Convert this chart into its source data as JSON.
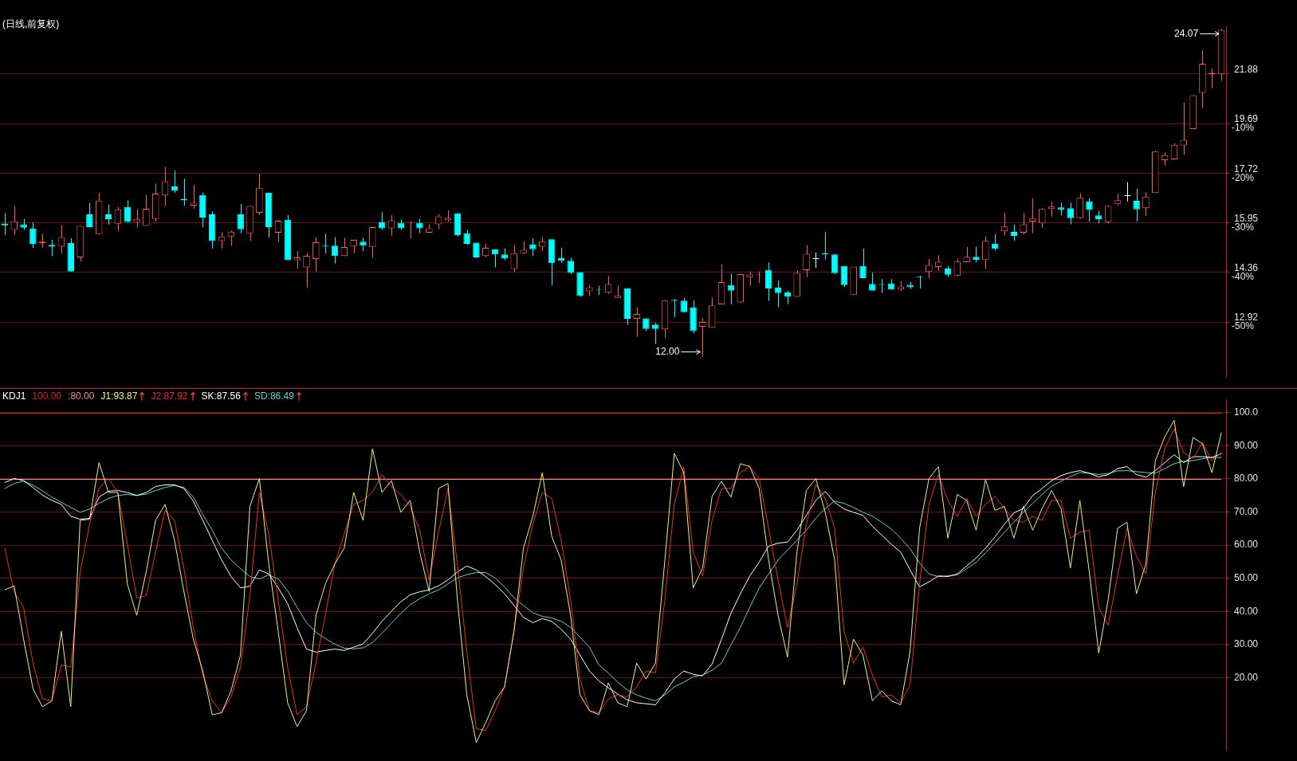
{
  "chart_data": [
    {
      "type": "candlestick",
      "title": "(日线,前复权)",
      "log": true,
      "grid": "y",
      "tick_labels": "y",
      "categories": [
        null,
        null,
        null,
        null,
        null,
        null,
        null,
        null,
        null,
        null,
        null,
        null,
        null,
        null,
        null,
        null,
        null,
        null,
        null,
        null,
        null,
        null,
        null,
        null,
        null,
        null,
        null,
        null,
        null,
        null,
        null,
        null,
        null,
        null,
        null,
        null,
        null,
        null,
        null,
        null,
        null,
        null,
        null,
        null,
        null,
        null,
        null,
        null,
        null,
        null,
        null,
        null,
        null,
        null,
        null,
        null,
        null,
        null,
        null,
        null,
        null,
        null,
        null,
        null,
        null,
        null,
        null,
        null,
        null,
        null,
        null,
        null,
        null,
        null,
        null,
        null,
        null,
        null,
        null,
        null,
        null,
        null,
        null,
        null,
        null,
        null,
        null,
        null,
        null,
        null,
        null,
        null,
        null,
        null,
        null,
        null,
        null,
        null,
        null,
        null,
        null,
        null,
        null,
        null,
        null,
        null,
        null,
        null,
        null,
        null,
        null,
        null,
        null,
        null,
        null,
        null,
        null,
        null,
        null,
        null,
        null,
        null,
        null,
        null,
        null,
        null,
        null,
        null,
        null,
        null
      ],
      "ohlc": [
        [
          15.92,
          16.27,
          15.54,
          15.86
        ],
        [
          15.71,
          16.52,
          15.55,
          16.0
        ],
        [
          15.9,
          16.08,
          15.71,
          15.78
        ],
        [
          15.75,
          15.97,
          15.12,
          15.25
        ],
        [
          15.28,
          15.58,
          15.12,
          15.32
        ],
        [
          15.22,
          15.38,
          14.86,
          15.16
        ],
        [
          15.16,
          15.86,
          14.95,
          15.47
        ],
        [
          15.28,
          15.43,
          14.38,
          14.38
        ],
        [
          14.82,
          15.84,
          14.69,
          15.84
        ],
        [
          16.24,
          16.63,
          15.8,
          15.8
        ],
        [
          15.57,
          17.0,
          15.57,
          16.72
        ],
        [
          16.24,
          16.58,
          15.89,
          16.07
        ],
        [
          15.92,
          16.49,
          15.68,
          16.41
        ],
        [
          16.49,
          16.73,
          15.95,
          15.98
        ],
        [
          15.98,
          16.41,
          15.78,
          16.08
        ],
        [
          15.84,
          16.92,
          15.84,
          16.43
        ],
        [
          16.08,
          17.33,
          16.0,
          16.97
        ],
        [
          16.9,
          17.96,
          16.52,
          17.42
        ],
        [
          17.23,
          17.82,
          17.0,
          17.07
        ],
        [
          16.78,
          17.52,
          16.54,
          16.74
        ],
        [
          16.54,
          17.29,
          16.43,
          16.64
        ],
        [
          16.92,
          17.0,
          15.8,
          16.13
        ],
        [
          16.24,
          16.34,
          15.1,
          15.34
        ],
        [
          15.34,
          15.63,
          15.1,
          15.49
        ],
        [
          15.49,
          15.69,
          15.19,
          15.65
        ],
        [
          16.24,
          16.6,
          15.6,
          15.73
        ],
        [
          15.6,
          16.53,
          15.34,
          16.53
        ],
        [
          16.29,
          17.7,
          16.21,
          17.18
        ],
        [
          17.0,
          17.0,
          15.45,
          15.8
        ],
        [
          15.62,
          16.05,
          15.3,
          16.02
        ],
        [
          16.05,
          16.21,
          14.73,
          14.73
        ],
        [
          14.73,
          15.02,
          14.47,
          14.82
        ],
        [
          14.51,
          14.95,
          13.9,
          14.87
        ],
        [
          14.77,
          15.47,
          14.38,
          15.3
        ],
        [
          15.19,
          15.58,
          14.95,
          15.17
        ],
        [
          15.19,
          15.47,
          14.63,
          14.86
        ],
        [
          14.86,
          15.45,
          14.86,
          15.15
        ],
        [
          15.17,
          15.38,
          14.95,
          15.38
        ],
        [
          15.32,
          15.45,
          15.02,
          15.19
        ],
        [
          15.14,
          15.8,
          14.82,
          15.8
        ],
        [
          15.98,
          16.31,
          15.71,
          15.76
        ],
        [
          15.76,
          16.21,
          15.52,
          16.03
        ],
        [
          15.95,
          16.05,
          15.71,
          15.76
        ],
        [
          15.95,
          16.0,
          15.43,
          15.97
        ],
        [
          15.95,
          16.09,
          15.6,
          15.76
        ],
        [
          15.62,
          15.9,
          15.6,
          15.76
        ],
        [
          15.9,
          16.24,
          15.73,
          16.17
        ],
        [
          16.04,
          16.38,
          15.98,
          16.12
        ],
        [
          16.28,
          16.28,
          15.49,
          15.53
        ],
        [
          15.6,
          15.71,
          15.22,
          15.25
        ],
        [
          15.29,
          15.29,
          14.8,
          14.82
        ],
        [
          14.86,
          15.25,
          14.82,
          15.12
        ],
        [
          15.08,
          15.08,
          14.51,
          14.91
        ],
        [
          14.91,
          15.1,
          14.73,
          14.78
        ],
        [
          14.46,
          15.21,
          14.36,
          14.95
        ],
        [
          14.95,
          15.34,
          14.93,
          15.06
        ],
        [
          15.23,
          15.43,
          14.86,
          15.08
        ],
        [
          15.16,
          15.47,
          15.03,
          15.32
        ],
        [
          15.4,
          15.4,
          13.97,
          14.64
        ],
        [
          14.8,
          15.12,
          14.64,
          14.71
        ],
        [
          14.71,
          14.8,
          14.3,
          14.34
        ],
        [
          14.36,
          14.36,
          13.63,
          13.65
        ],
        [
          13.79,
          13.97,
          13.65,
          13.91
        ],
        [
          13.84,
          13.95,
          13.68,
          13.83
        ],
        [
          13.75,
          14.24,
          13.72,
          14.0
        ],
        [
          13.59,
          13.96,
          13.59,
          13.67
        ],
        [
          13.88,
          13.88,
          12.84,
          13.01
        ],
        [
          13.01,
          13.33,
          12.52,
          13.14
        ],
        [
          13.02,
          13.02,
          12.68,
          12.73
        ],
        [
          12.85,
          12.9,
          12.33,
          12.73
        ],
        [
          12.72,
          13.52,
          12.49,
          13.52
        ],
        [
          13.54,
          13.56,
          13.05,
          13.51
        ],
        [
          13.52,
          13.6,
          13.19,
          13.19
        ],
        [
          13.33,
          13.52,
          12.61,
          12.67
        ],
        [
          12.79,
          13.02,
          12.0,
          12.92
        ],
        [
          12.76,
          13.6,
          12.76,
          13.38
        ],
        [
          13.41,
          14.59,
          13.41,
          14.06
        ],
        [
          13.97,
          14.32,
          13.41,
          13.81
        ],
        [
          13.47,
          14.3,
          13.45,
          14.3
        ],
        [
          14.21,
          14.38,
          13.95,
          14.29
        ],
        [
          14.27,
          14.38,
          14.03,
          14.29
        ],
        [
          14.43,
          14.66,
          13.51,
          13.87
        ],
        [
          13.9,
          14.1,
          13.33,
          13.74
        ],
        [
          13.76,
          13.81,
          13.42,
          13.63
        ],
        [
          13.63,
          14.42,
          13.63,
          14.34
        ],
        [
          14.42,
          15.21,
          14.2,
          14.93
        ],
        [
          14.79,
          14.97,
          14.49,
          14.79
        ],
        [
          14.95,
          15.64,
          14.75,
          14.91
        ],
        [
          14.91,
          14.91,
          14.3,
          14.33
        ],
        [
          14.55,
          14.55,
          13.92,
          13.97
        ],
        [
          13.68,
          14.53,
          13.68,
          14.53
        ],
        [
          14.55,
          15.1,
          14.18,
          14.18
        ],
        [
          14.01,
          14.34,
          13.81,
          13.81
        ],
        [
          14.0,
          14.15,
          13.74,
          13.98
        ],
        [
          14.02,
          14.15,
          13.83,
          13.84
        ],
        [
          13.84,
          14.09,
          13.8,
          13.93
        ],
        [
          13.98,
          14.07,
          13.86,
          13.91
        ],
        [
          14.23,
          14.25,
          13.87,
          14.21
        ],
        [
          14.37,
          14.77,
          14.18,
          14.58
        ],
        [
          14.52,
          14.88,
          14.4,
          14.68
        ],
        [
          14.47,
          14.55,
          14.22,
          14.28
        ],
        [
          14.26,
          14.78,
          14.23,
          14.69
        ],
        [
          14.67,
          15.15,
          14.67,
          14.84
        ],
        [
          14.84,
          15.15,
          14.67,
          14.74
        ],
        [
          14.74,
          15.49,
          14.46,
          15.35
        ],
        [
          15.26,
          15.57,
          15.05,
          15.09
        ],
        [
          15.66,
          16.29,
          15.52,
          15.82
        ],
        [
          15.64,
          15.88,
          15.35,
          15.51
        ],
        [
          15.62,
          16.29,
          15.55,
          15.9
        ],
        [
          15.99,
          16.8,
          15.6,
          16.11
        ],
        [
          15.93,
          16.45,
          15.79,
          16.42
        ],
        [
          16.42,
          16.68,
          16.15,
          16.51
        ],
        [
          16.48,
          16.64,
          16.2,
          16.39
        ],
        [
          16.45,
          16.64,
          15.9,
          16.11
        ],
        [
          16.11,
          16.98,
          16.08,
          16.83
        ],
        [
          16.69,
          16.8,
          15.99,
          16.39
        ],
        [
          16.2,
          16.36,
          15.93,
          16.07
        ],
        [
          15.97,
          16.55,
          15.93,
          16.53
        ],
        [
          16.59,
          16.98,
          16.55,
          16.73
        ],
        [
          16.91,
          17.38,
          16.69,
          16.91
        ],
        [
          16.71,
          17.14,
          15.99,
          16.41
        ],
        [
          16.45,
          17.02,
          16.18,
          16.86
        ],
        [
          16.99,
          18.59,
          16.98,
          18.57
        ],
        [
          18.22,
          18.52,
          18.01,
          18.41
        ],
        [
          18.25,
          18.88,
          18.25,
          18.82
        ],
        [
          18.8,
          20.58,
          18.43,
          19.02
        ],
        [
          19.46,
          20.91,
          19.46,
          20.91
        ],
        [
          21.02,
          23.01,
          20.35,
          22.36
        ],
        [
          21.85,
          22.13,
          21.23,
          21.93
        ],
        [
          21.86,
          24.07,
          21.56,
          24.02
        ]
      ],
      "colors": [
        "#00ffff",
        "#ff5a5a",
        "#00ffff",
        "#00ffff",
        "#ff5a5a",
        "#00ffff",
        "#ff5a5a",
        "#00ffff",
        "#ff5a5a",
        "#00ffff",
        "#ff5a5a",
        "#00ffff",
        "#ff5a5a",
        "#00ffff",
        "#ff5a5a",
        "#ff5a5a",
        "#ff5a5a",
        "#ff5a5a",
        "#00ffff",
        "#00ffff",
        "#ff5a5a",
        "#00ffff",
        "#00ffff",
        "#ff5a5a",
        "#ff5a5a",
        "#00ffff",
        "#ff5a5a",
        "#ff5a5a",
        "#00ffff",
        "#ff5a5a",
        "#00ffff",
        "#ff5a5a",
        "#ff5a5a",
        "#ff5a5a",
        "#00ffff",
        "#00ffff",
        "#ff5a5a",
        "#ff5a5a",
        "#00ffff",
        "#ff5a5a",
        "#00ffff",
        "#ff5a5a",
        "#00ffff",
        "#ff5a5a",
        "#00ffff",
        "#ff5a5a",
        "#ff5a5a",
        "#ff5a5a",
        "#00ffff",
        "#00ffff",
        "#00ffff",
        "#ff5a5a",
        "#00ffff",
        "#00ffff",
        "#ff5a5a",
        "#ff5a5a",
        "#00ffff",
        "#ff5a5a",
        "#00ffff",
        "#00ffff",
        "#00ffff",
        "#00ffff",
        "#ff5a5a",
        "#00ffff",
        "#ff5a5a",
        "#ff5a5a",
        "#00ffff",
        "#ff5a5a",
        "#00ffff",
        "#00ffff",
        "#ff5a5a",
        "#00ffff",
        "#00ffff",
        "#00ffff",
        "#ff5a5a",
        "#ff5a5a",
        "#ff5a5a",
        "#00ffff",
        "#ff5a5a",
        "#ff5a5a",
        "#ff5a5a",
        "#00ffff",
        "#00ffff",
        "#00ffff",
        "#ff5a5a",
        "#ff5a5a",
        "#ffffff",
        "#00ffff",
        "#00ffff",
        "#00ffff",
        "#ff5a5a",
        "#00ffff",
        "#00ffff",
        "#00ffff",
        "#00ffff",
        "#ff5a5a",
        "#00ffff",
        "#00ffff",
        "#ff5a5a",
        "#ff5a5a",
        "#00ffff",
        "#ff5a5a",
        "#ff5a5a",
        "#00ffff",
        "#ff5a5a",
        "#00ffff",
        "#ff5a5a",
        "#00ffff",
        "#ff5a5a",
        "#ff5a5a",
        "#ff5a5a",
        "#ff5a5a",
        "#00ffff",
        "#00ffff",
        "#ff5a5a",
        "#00ffff",
        "#00ffff",
        "#ff5a5a",
        "#ff5a5a",
        "#ffffff",
        "#00ffff",
        "#ff5a5a",
        "#ff5a5a",
        "#ff5a5a",
        "#ff5a5a",
        "#ff5a5a",
        "#ff5a5a",
        "#ff5a5a",
        "#ff5a5a",
        "#ff5a5a"
      ],
      "ylim": [
        11.5,
        24.2
      ],
      "yticks": [
        12.92,
        14.36,
        15.95,
        17.72,
        19.69,
        21.88
      ],
      "y2lim": [
        -61.1,
        9.6
      ],
      "y2ticks": [
        {
          "value": -50,
          "label": "-50%"
        },
        {
          "value": -40,
          "label": "-40%"
        },
        {
          "value": -30,
          "label": "-30%"
        },
        {
          "value": -20,
          "label": "-20%"
        },
        {
          "value": -10,
          "label": "-10%"
        }
      ],
      "annotations": [
        "12.00",
        "24.07"
      ]
    },
    {
      "type": "line",
      "title": "KDJ1",
      "grid": "y",
      "tick_labels": "y",
      "legend": "top left",
      "marker": "none",
      "line_style": "solid",
      "categories": [
        null,
        null,
        null,
        null,
        null,
        null,
        null,
        null,
        null,
        null,
        null,
        null,
        null,
        null,
        null,
        null,
        null,
        null,
        null,
        null,
        null,
        null,
        null,
        null,
        null,
        null,
        null,
        null,
        null,
        null,
        null,
        null,
        null,
        null,
        null,
        null,
        null,
        null,
        null,
        null,
        null,
        null,
        null,
        null,
        null,
        null,
        null,
        null,
        null,
        null,
        null,
        null,
        null,
        null,
        null,
        null,
        null,
        null,
        null,
        null,
        null,
        null,
        null,
        null,
        null,
        null,
        null,
        null,
        null,
        null,
        null,
        null,
        null,
        null,
        null,
        null,
        null,
        null,
        null,
        null,
        null,
        null,
        null,
        null,
        null,
        null,
        null,
        null,
        null,
        null,
        null,
        null,
        null,
        null,
        null,
        null,
        null,
        null,
        null,
        null,
        null,
        null,
        null,
        null,
        null,
        null,
        null,
        null,
        null,
        null,
        null,
        null,
        null,
        null,
        null,
        null,
        null,
        null,
        null,
        null,
        null,
        null,
        null,
        null,
        null,
        null,
        null,
        null,
        null,
        null
      ],
      "series": [
        {
          "name": "J1:93.87",
          "color": "#f0f08a",
          "values": [
            46.5,
            47.7,
            31.6,
            16.6,
            11.2,
            13.0,
            34.0,
            11.2,
            67.5,
            67.8,
            84.9,
            75.9,
            75.9,
            48.3,
            38.8,
            51.9,
            67.5,
            72.3,
            61.5,
            46.0,
            31.6,
            22.0,
            8.8,
            9.4,
            16.0,
            26.8,
            71.7,
            80.1,
            54.3,
            34.0,
            12.4,
            5.2,
            10.0,
            38.8,
            48.3,
            54.3,
            59.1,
            75.9,
            67.5,
            89.1,
            75.9,
            79.5,
            69.9,
            73.5,
            57.9,
            46.0,
            77.1,
            78.6,
            43.5,
            14.8,
            0.4,
            6.4,
            13.0,
            17.2,
            34.0,
            59.1,
            68.7,
            81.9,
            62.7,
            55.5,
            38.8,
            14.8,
            10.0,
            8.8,
            18.4,
            12.4,
            11.2,
            24.4,
            19.6,
            24.4,
            55.5,
            87.7,
            81.9,
            47.1,
            53.1,
            74.7,
            79.3,
            74.5,
            84.6,
            83.7,
            77.1,
            55.5,
            38.8,
            26.2,
            57.9,
            76.5,
            80.1,
            69.9,
            55.5,
            17.8,
            31.6,
            26.8,
            13.0,
            16.0,
            13.0,
            11.8,
            28.0,
            65.1,
            80.1,
            83.7,
            62.1,
            75.3,
            73.5,
            64.5,
            79.8,
            70.5,
            71.7,
            62.1,
            71.7,
            64.5,
            71.1,
            76.5,
            71.1,
            53.1,
            73.5,
            51.9,
            27.4,
            43.5,
            65.1,
            66.9,
            45.3,
            54.3,
            85.5,
            92.7,
            97.7,
            77.7,
            92.5,
            90.6,
            81.9,
            93.9
          ]
        },
        {
          "name": "J2:87.92",
          "color": "#e8302a",
          "values": [
            59.1,
            45.9,
            41.2,
            24.4,
            13.6,
            13.0,
            23.8,
            23.2,
            51.9,
            66.3,
            77.1,
            80.1,
            75.9,
            60.3,
            44.1,
            44.7,
            57.9,
            70.5,
            67.5,
            53.1,
            35.2,
            20.8,
            13.0,
            9.4,
            14.2,
            23.2,
            44.7,
            75.9,
            63.3,
            43.5,
            23.2,
            8.8,
            11.2,
            24.4,
            38.8,
            54.3,
            63.3,
            72.3,
            73.5,
            75.9,
            81.3,
            77.7,
            75.3,
            71.7,
            64.5,
            49.5,
            63.9,
            77.1,
            54.3,
            28.0,
            4.6,
            4.0,
            10.0,
            17.2,
            34.0,
            53.1,
            66.3,
            75.9,
            74.1,
            61.5,
            43.5,
            19.6,
            10.0,
            9.4,
            13.6,
            14.8,
            14.2,
            17.2,
            22.0,
            21.4,
            43.5,
            72.3,
            83.7,
            57.9,
            50.7,
            67.5,
            77.1,
            77.1,
            81.9,
            83.7,
            80.1,
            65.1,
            49.5,
            35.2,
            48.3,
            66.3,
            78.3,
            74.1,
            65.1,
            34.0,
            24.4,
            29.2,
            20.8,
            14.2,
            14.8,
            12.4,
            17.8,
            48.3,
            72.3,
            81.3,
            73.5,
            68.7,
            74.1,
            68.7,
            72.3,
            74.7,
            71.1,
            67.5,
            66.9,
            68.7,
            67.5,
            73.5,
            73.5,
            62.1,
            63.9,
            64.5,
            41.2,
            35.8,
            50.7,
            65.1,
            56.7,
            51.3,
            75.9,
            89.1,
            95.1,
            87.9,
            86.1,
            90.9,
            85.5,
            87.9
          ]
        },
        {
          "name": "SK:87.56",
          "color": "#ffffff",
          "values": [
            78.9,
            80.1,
            79.5,
            77.4,
            75.1,
            73.5,
            72.3,
            68.7,
            67.8,
            68.1,
            74.5,
            76.3,
            76.5,
            75.9,
            75.0,
            75.9,
            77.7,
            78.2,
            78.2,
            77.1,
            73.3,
            67.5,
            61.5,
            55.5,
            50.5,
            47.1,
            47.6,
            52.5,
            51.3,
            47.1,
            42.3,
            35.1,
            28.6,
            27.7,
            28.2,
            28.6,
            28.2,
            29.2,
            30.2,
            33.4,
            37.0,
            40.0,
            42.9,
            45.0,
            45.9,
            46.5,
            47.7,
            49.5,
            51.9,
            53.7,
            52.5,
            50.5,
            48.1,
            45.3,
            41.8,
            38.2,
            36.6,
            37.8,
            37.0,
            34.6,
            31.6,
            26.8,
            22.0,
            19.0,
            16.9,
            15.0,
            13.3,
            12.4,
            12.1,
            11.8,
            15.4,
            19.6,
            22.0,
            21.0,
            20.5,
            24.1,
            31.6,
            39.4,
            45.3,
            50.7,
            54.9,
            59.7,
            60.6,
            60.9,
            64.5,
            69.0,
            73.5,
            76.2,
            72.9,
            70.9,
            69.9,
            69.0,
            65.7,
            63.0,
            60.3,
            57.9,
            52.5,
            47.4,
            48.9,
            50.7,
            50.5,
            51.3,
            53.7,
            56.1,
            59.1,
            62.5,
            66.3,
            69.7,
            71.1,
            75.0,
            77.1,
            79.5,
            81.0,
            81.9,
            82.5,
            81.7,
            80.6,
            81.3,
            83.1,
            83.7,
            81.3,
            80.5,
            82.5,
            84.9,
            87.3,
            84.9,
            86.7,
            86.7,
            86.5,
            87.6
          ]
        },
        {
          "name": "SD:86.49",
          "color": "#5fd3c8",
          "values": [
            77.1,
            78.6,
            79.3,
            78.1,
            76.4,
            74.5,
            72.9,
            71.4,
            69.9,
            70.9,
            72.6,
            74.1,
            75.0,
            75.3,
            75.0,
            75.4,
            76.5,
            77.4,
            78.0,
            77.4,
            74.5,
            69.3,
            64.5,
            59.1,
            55.5,
            52.9,
            50.5,
            49.8,
            51.0,
            49.8,
            46.2,
            41.2,
            36.6,
            33.7,
            31.8,
            30.1,
            28.9,
            28.7,
            29.0,
            30.6,
            33.4,
            36.4,
            39.4,
            42.0,
            43.8,
            45.3,
            46.5,
            48.3,
            50.1,
            51.1,
            51.7,
            51.7,
            50.1,
            47.4,
            44.1,
            41.8,
            39.6,
            38.5,
            38.0,
            37.0,
            35.2,
            32.2,
            29.2,
            23.8,
            21.4,
            18.6,
            16.3,
            14.8,
            13.8,
            13.0,
            14.8,
            17.2,
            18.6,
            20.3,
            20.8,
            22.2,
            24.4,
            29.8,
            35.2,
            41.2,
            47.1,
            51.3,
            55.5,
            58.5,
            61.5,
            64.5,
            68.1,
            71.1,
            73.3,
            72.6,
            71.4,
            69.9,
            68.7,
            66.9,
            64.9,
            62.1,
            58.9,
            54.6,
            51.3,
            50.5,
            50.7,
            51.0,
            52.9,
            54.8,
            57.7,
            60.7,
            63.9,
            66.9,
            69.9,
            72.6,
            75.3,
            77.8,
            79.3,
            80.7,
            81.9,
            81.7,
            81.3,
            81.6,
            82.4,
            82.5,
            82.2,
            81.9,
            81.7,
            83.1,
            84.6,
            85.3,
            85.5,
            86.1,
            86.4,
            86.5
          ]
        }
      ],
      "ylim": [
        -2,
        104
      ],
      "yticks": [
        {
          "value": 20,
          "label": "20.00"
        },
        {
          "value": 30,
          "label": "30.00"
        },
        {
          "value": 40,
          "label": "40.00"
        },
        {
          "value": 50,
          "label": "50.00"
        },
        {
          "value": 60,
          "label": "60.00"
        },
        {
          "value": 70,
          "label": "70.00"
        },
        {
          "value": 80,
          "label": "80.00"
        },
        {
          "value": 90,
          "label": "90.00"
        },
        {
          "value": 100,
          "label": "100.0"
        }
      ],
      "ref_lines": [
        {
          "axis": "y",
          "value": 100,
          "label": "100.00",
          "color": "#e02020"
        },
        {
          "axis": "y",
          "value": 80,
          "label": ":80.00",
          "color": "#f09090"
        }
      ]
    }
  ]
}
